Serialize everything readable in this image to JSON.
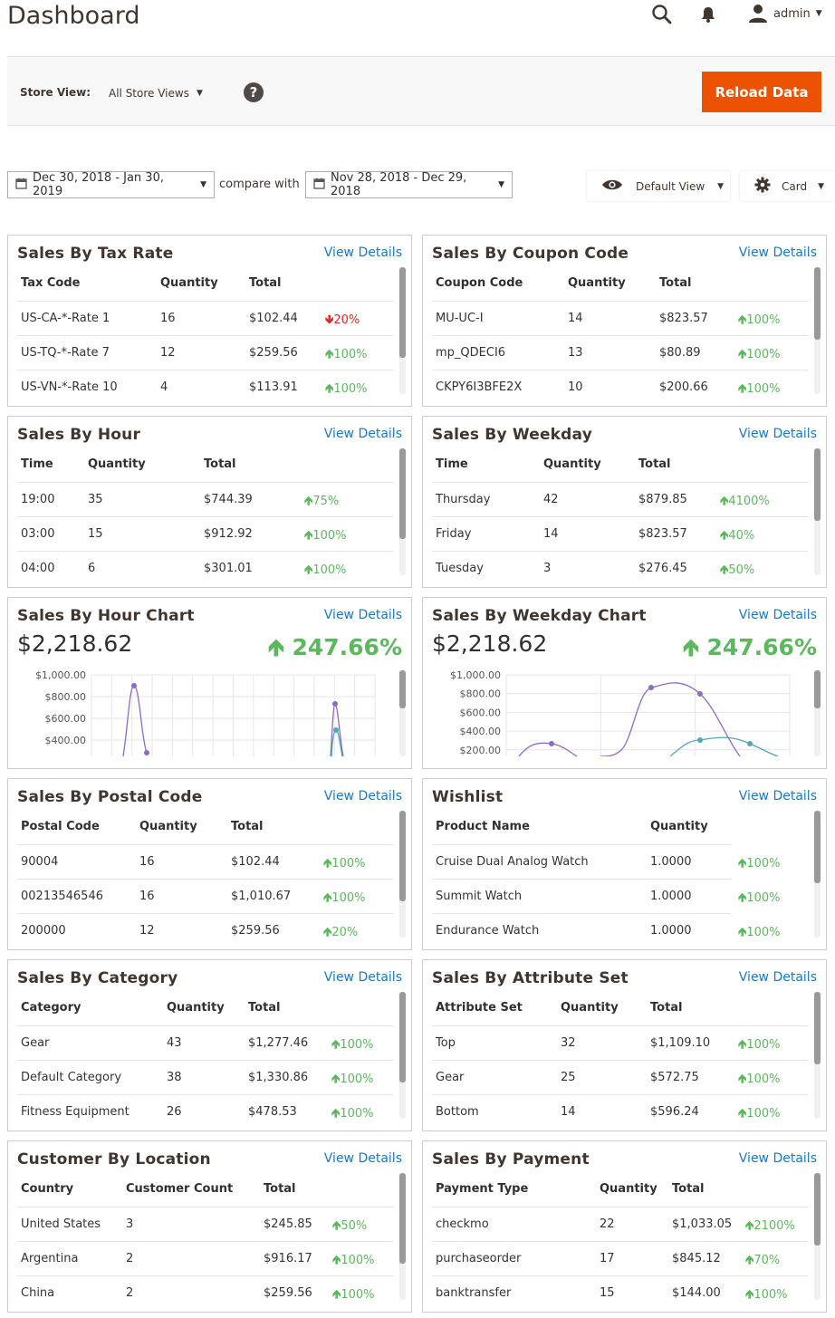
{
  "header": {
    "title": "Dashboard",
    "user": "admin"
  },
  "store": {
    "label": "Store View:",
    "value": "All Store Views",
    "reload_label": "Reload Data"
  },
  "filters": {
    "date_range": "Dec 30, 2018 - Jan 30, 2019",
    "compare_label": "compare with",
    "compare_range": "Nov 28, 2018 - Dec 29, 2018",
    "view_label": "Default View",
    "card_label": "Card"
  },
  "view_details": "View Details",
  "cards": {
    "tax": {
      "title": "Sales By Tax Rate",
      "headers": [
        "Tax Code",
        "Quantity",
        "Total"
      ],
      "rows": [
        [
          "US-CA-*-Rate 1",
          "16",
          "$102.44",
          "20%",
          "down"
        ],
        [
          "US-TQ-*-Rate 7",
          "12",
          "$259.56",
          "100%",
          "up"
        ],
        [
          "US-VN-*-Rate 10",
          "4",
          "$113.91",
          "100%",
          "up"
        ]
      ]
    },
    "coupon": {
      "title": "Sales By Coupon Code",
      "headers": [
        "Coupon Code",
        "Quantity",
        "Total"
      ],
      "rows": [
        [
          "MU-UC-I",
          "14",
          "$823.57",
          "100%",
          "up"
        ],
        [
          "mp_QDECI6",
          "13",
          "$80.89",
          "100%",
          "up"
        ],
        [
          "CKPY6I3BFE2X",
          "10",
          "$200.66",
          "100%",
          "up"
        ]
      ]
    },
    "hour": {
      "title": "Sales By Hour",
      "headers": [
        "Time",
        "Quantity",
        "Total"
      ],
      "rows": [
        [
          "19:00",
          "35",
          "$744.39",
          "75%",
          "up"
        ],
        [
          "03:00",
          "15",
          "$912.92",
          "100%",
          "up"
        ],
        [
          "04:00",
          "6",
          "$301.01",
          "100%",
          "up"
        ]
      ]
    },
    "weekday": {
      "title": "Sales By Weekday",
      "headers": [
        "Time",
        "Quantity",
        "Total"
      ],
      "rows": [
        [
          "Thursday",
          "42",
          "$879.85",
          "4100%",
          "up"
        ],
        [
          "Friday",
          "14",
          "$823.57",
          "40%",
          "up"
        ],
        [
          "Tuesday",
          "3",
          "$276.45",
          "50%",
          "up"
        ]
      ]
    },
    "hour_chart": {
      "title": "Sales By Hour Chart",
      "total": "$2,218.62",
      "change": "247.66%",
      "yticks": [
        "$1,000.00",
        "$800.00",
        "$600.00",
        "$400.00"
      ]
    },
    "weekday_chart": {
      "title": "Sales By Weekday Chart",
      "total": "$2,218.62",
      "change": "247.66%",
      "yticks": [
        "$1,000.00",
        "$800.00",
        "$600.00",
        "$400.00",
        "$200.00"
      ]
    },
    "postal": {
      "title": "Sales By Postal Code",
      "headers": [
        "Postal Code",
        "Quantity",
        "Total"
      ],
      "rows": [
        [
          "90004",
          "16",
          "$102.44",
          "100%",
          "up"
        ],
        [
          "00213546546",
          "16",
          "$1,010.67",
          "100%",
          "up"
        ],
        [
          "200000",
          "12",
          "$259.56",
          "20%",
          "up"
        ]
      ]
    },
    "wishlist": {
      "title": "Wishlist",
      "headers": [
        "Product Name",
        "Quantity",
        ""
      ],
      "rows": [
        [
          "Cruise Dual Analog Watch",
          "1.0000",
          "",
          "100%",
          "up"
        ],
        [
          "Summit Watch",
          "1.0000",
          "",
          "100%",
          "up"
        ],
        [
          "Endurance Watch",
          "1.0000",
          "",
          "100%",
          "up"
        ]
      ]
    },
    "category": {
      "title": "Sales By Category",
      "headers": [
        "Category",
        "Quantity",
        "Total"
      ],
      "rows": [
        [
          "Gear",
          "43",
          "$1,277.46",
          "100%",
          "up"
        ],
        [
          "Default Category",
          "38",
          "$1,330.86",
          "100%",
          "up"
        ],
        [
          "Fitness Equipment",
          "26",
          "$478.53",
          "100%",
          "up"
        ]
      ]
    },
    "attribute": {
      "title": "Sales By Attribute Set",
      "headers": [
        "Attribute Set",
        "Quantity",
        "Total"
      ],
      "rows": [
        [
          "Top",
          "32",
          "$1,109.10",
          "100%",
          "up"
        ],
        [
          "Gear",
          "25",
          "$572.75",
          "100%",
          "up"
        ],
        [
          "Bottom",
          "14",
          "$596.24",
          "100%",
          "up"
        ]
      ]
    },
    "location": {
      "title": "Customer By Location",
      "headers": [
        "Country",
        "Customer Count",
        "Total"
      ],
      "rows": [
        [
          "United States",
          "3",
          "$245.85",
          "50%",
          "up"
        ],
        [
          "Argentina",
          "2",
          "$916.17",
          "100%",
          "up"
        ],
        [
          "China",
          "2",
          "$259.56",
          "100%",
          "up"
        ]
      ]
    },
    "payment": {
      "title": "Sales By Payment",
      "headers": [
        "Payment Type",
        "Quantity",
        "Total"
      ],
      "rows": [
        [
          "checkmo",
          "22",
          "$1,033.05",
          "2100%",
          "up"
        ],
        [
          "purchaseorder",
          "17",
          "$845.12",
          "70%",
          "up"
        ],
        [
          "banktransfer",
          "15",
          "$144.00",
          "100%",
          "up"
        ]
      ]
    }
  },
  "colors": {
    "accent": "#eb5202",
    "link": "#1979c3",
    "up": "#5cb85c",
    "down": "#e22626",
    "series1": "#8e6ac8",
    "series2": "#4fa8b4"
  }
}
